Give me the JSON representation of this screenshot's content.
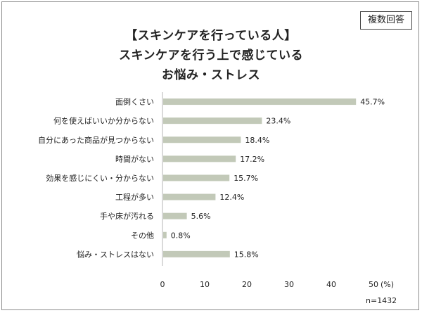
{
  "badge": "複数回答",
  "title_lines": [
    "【スキンケアを行っている人】",
    "スキンケアを行う上で感じている",
    "お悩み・ストレス"
  ],
  "note": "n=1432",
  "chart_data": {
    "type": "bar",
    "orientation": "horizontal",
    "categories": [
      "面倒くさい",
      "何を使えばいいか分からない",
      "自分にあった商品が見つからない",
      "時間がない",
      "効果を感じにくい・分からない",
      "工程が多い",
      "手や床が汚れる",
      "その他",
      "悩み・ストレスはない"
    ],
    "values": [
      45.7,
      23.4,
      18.4,
      17.2,
      15.7,
      12.4,
      5.6,
      0.8,
      15.8
    ],
    "value_labels": [
      "45.7%",
      "23.4%",
      "18.4%",
      "17.2%",
      "15.7%",
      "12.4%",
      "5.6%",
      "0.8%",
      "15.8%"
    ],
    "xlim": [
      0,
      50
    ],
    "xticks": [
      0,
      10,
      20,
      30,
      40,
      50
    ],
    "xunit": "(%)",
    "bar_color": "#c2c9b8",
    "axis_color": "#b5b5b5",
    "grid": false
  }
}
